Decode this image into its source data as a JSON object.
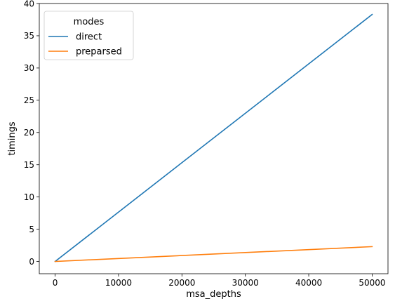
{
  "chart_data": {
    "type": "line",
    "xlabel": "msa_depths",
    "ylabel": "timings",
    "xlim": [
      -2500,
      52500
    ],
    "ylim": [
      -1.9,
      40
    ],
    "xticks": [
      0,
      10000,
      20000,
      30000,
      40000,
      50000
    ],
    "yticks": [
      0,
      5,
      10,
      15,
      20,
      25,
      30,
      35,
      40
    ],
    "legend": {
      "title": "modes",
      "placement": "upper-left"
    },
    "series": [
      {
        "name": "direct",
        "color": "#1f77b4",
        "x": [
          0,
          50000
        ],
        "y": [
          0,
          38.3
        ]
      },
      {
        "name": "preparsed",
        "color": "#ff7f0e",
        "x": [
          0,
          50000
        ],
        "y": [
          0,
          2.3
        ]
      }
    ]
  }
}
